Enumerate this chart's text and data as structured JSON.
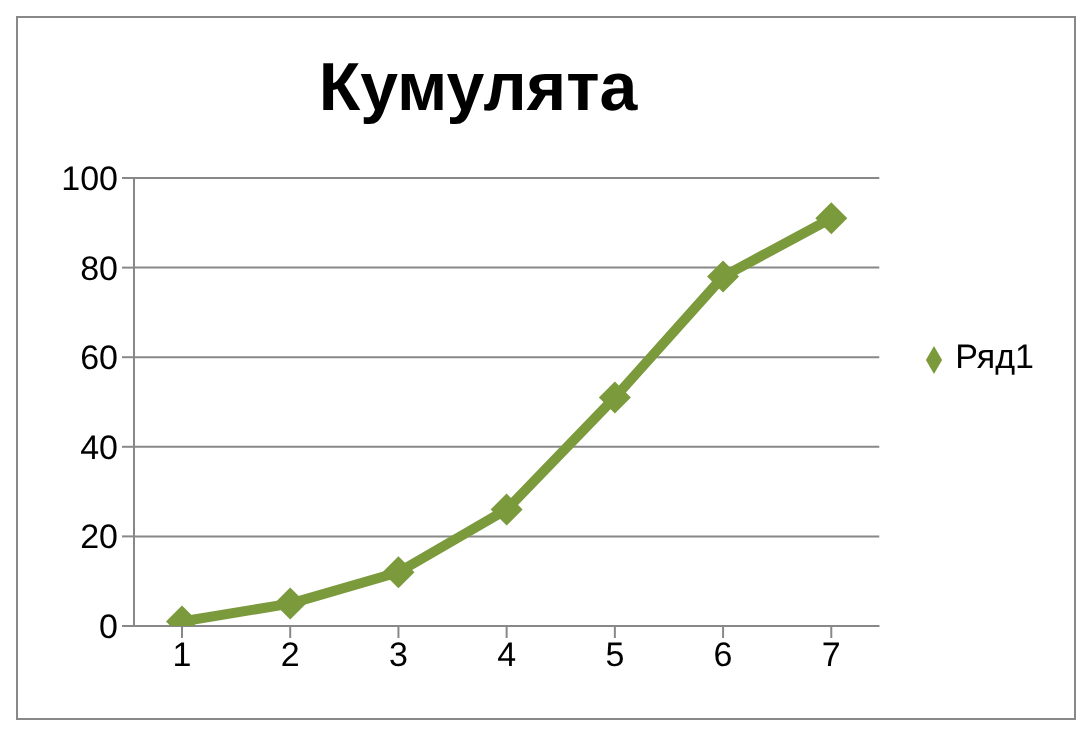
{
  "chart_data": {
    "type": "line",
    "title": "Кумулята",
    "categories": [
      "1",
      "2",
      "3",
      "4",
      "5",
      "6",
      "7"
    ],
    "series": [
      {
        "name": "Ряд1",
        "color": "#7a9a3c",
        "values": [
          1,
          5,
          12,
          26,
          51,
          78,
          91
        ]
      }
    ],
    "ylim": [
      0,
      100
    ],
    "yticks": [
      0,
      20,
      40,
      60,
      80,
      100
    ],
    "grid": "y",
    "legend": "right",
    "marker": "diamond",
    "line_style": "solid"
  }
}
